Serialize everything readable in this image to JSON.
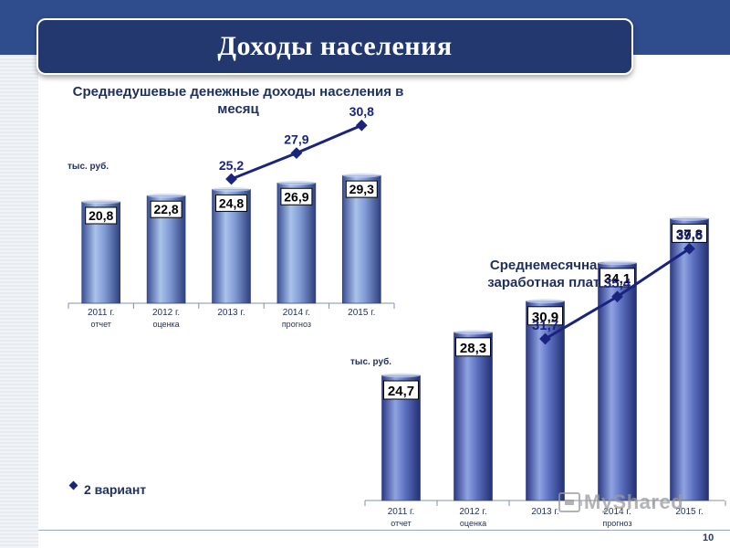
{
  "header": {
    "title": "Доходы населения"
  },
  "legend": {
    "label": "2 вариант"
  },
  "page_number": "10",
  "watermark": "MyShared",
  "chart_data": [
    {
      "type": "bar",
      "title": "Среднедушевые денежные доходы населения в месяц",
      "unit_label": "тыс. руб.",
      "categories": [
        "2011 г.",
        "2012 г.",
        "2013 г.",
        "2014 г.",
        "2015 г."
      ],
      "category_sublabels": [
        "отчет",
        "оценка",
        "",
        "прогноз",
        ""
      ],
      "series": [
        {
          "values": [
            20.8,
            22.8,
            24.8,
            26.9,
            29.3
          ],
          "labels": [
            "20,8",
            "22,8",
            "24,8",
            "26,9",
            "29,3"
          ]
        },
        {
          "name": "2 вариант",
          "type": "line",
          "values": [
            null,
            null,
            25.2,
            27.9,
            30.8
          ],
          "labels": [
            "",
            "",
            "25,2",
            "27,9",
            "30,8"
          ]
        }
      ],
      "colors": {
        "bar": "#5a72b8",
        "line": "#1a237e",
        "label_text": "#000000",
        "line_label": "#1a237e"
      }
    },
    {
      "type": "bar",
      "title": "Среднемесячная заработная плата",
      "unit_label": "тыс. руб.",
      "categories": [
        "2011 г.",
        "2012 г.",
        "2013 г.",
        "2014 г.",
        "2015 г."
      ],
      "category_sublabels": [
        "отчет",
        "оценка",
        "",
        "прогноз",
        ""
      ],
      "series": [
        {
          "values": [
            24.7,
            28.3,
            30.9,
            34.1,
            37.8
          ],
          "labels": [
            "24,7",
            "28,3",
            "30,9",
            "34,1",
            "37,8"
          ]
        },
        {
          "name": "2 вариант",
          "type": "line",
          "values": [
            null,
            null,
            31.7,
            35.4,
            39.6
          ],
          "labels": [
            "",
            "",
            "31,7",
            "35,4",
            "39,6"
          ]
        }
      ],
      "colors": {
        "bar": "#4a5fb0",
        "line": "#1a237e",
        "label_text": "#000000",
        "line_label": "#1a237e"
      }
    }
  ]
}
